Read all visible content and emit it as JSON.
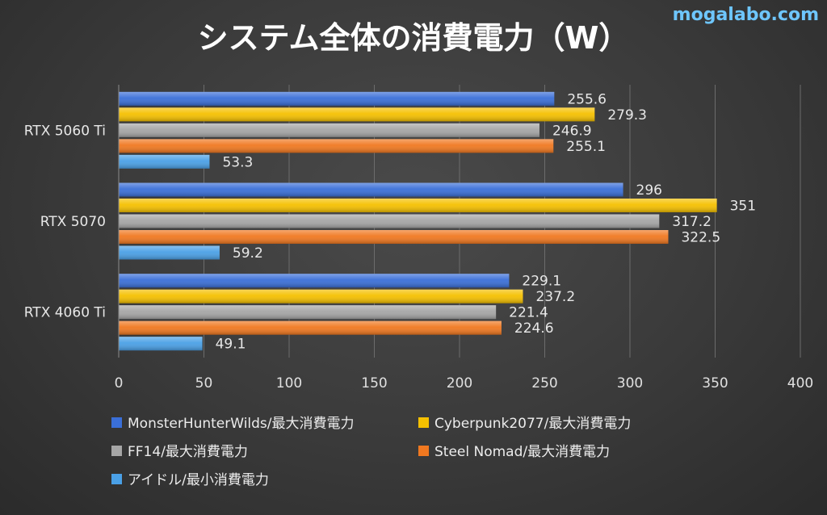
{
  "brand": "mogalabo.com",
  "chart_data": {
    "type": "bar",
    "orientation": "horizontal",
    "title": "システム全体の消費電力（W）",
    "categories": [
      "RTX 5060 Ti",
      "RTX 5070",
      "RTX 4060 Ti"
    ],
    "series": [
      {
        "name": "MonsterHunterWilds/最大消費電力",
        "color": "#3a6fd8",
        "values": [
          255.6,
          296,
          229.1
        ],
        "labels": [
          "255.6",
          "296",
          "229.1"
        ]
      },
      {
        "name": "Cyberpunk2077/最大消費電力",
        "color": "#f5c000",
        "values": [
          279.3,
          351,
          237.2
        ],
        "labels": [
          "279.3",
          "351",
          "237.2"
        ]
      },
      {
        "name": "FF14/最大消費電力",
        "color": "#a6a6a6",
        "values": [
          246.9,
          317.2,
          221.4
        ],
        "labels": [
          "246.9",
          "317.2",
          "221.4"
        ]
      },
      {
        "name": "Steel Nomad/最大消費電力",
        "color": "#f07820",
        "values": [
          255.1,
          322.5,
          224.6
        ],
        "labels": [
          "255.1",
          "322.5",
          "224.6"
        ]
      },
      {
        "name": "アイドル/最小消費電力",
        "color": "#4aa0e6",
        "values": [
          53.3,
          59.2,
          49.1
        ],
        "labels": [
          "53.3",
          "59.2",
          "49.1"
        ]
      }
    ],
    "xlim": [
      0,
      400
    ],
    "xticks": [
      0,
      50,
      100,
      150,
      200,
      250,
      300,
      350,
      400
    ],
    "xlabel": "",
    "ylabel": "",
    "grid": true,
    "legend_position": "bottom"
  }
}
